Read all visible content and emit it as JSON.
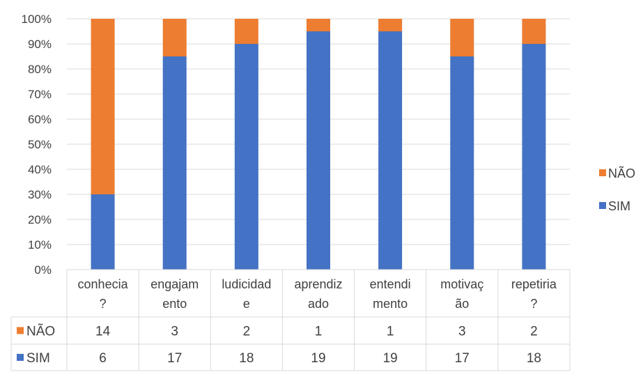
{
  "chart_data": {
    "type": "bar",
    "stacked": true,
    "normalized_percent": true,
    "categories": [
      [
        "conhecia",
        "?"
      ],
      [
        "engajam",
        "ento"
      ],
      [
        "ludicidad",
        "e"
      ],
      [
        "aprendiz",
        "ado"
      ],
      [
        "entendi",
        "mento"
      ],
      [
        "motivaç",
        "ão"
      ],
      [
        "repetiria",
        "?"
      ]
    ],
    "series": [
      {
        "name": "SIM",
        "color": "#4472C4",
        "values": [
          6,
          17,
          18,
          19,
          19,
          17,
          18
        ]
      },
      {
        "name": "NÃO",
        "color": "#ED7D31",
        "values": [
          14,
          3,
          2,
          1,
          1,
          3,
          2
        ]
      }
    ],
    "y_ticks": [
      "0%",
      "10%",
      "20%",
      "30%",
      "40%",
      "50%",
      "60%",
      "70%",
      "80%",
      "90%",
      "100%"
    ],
    "ylim": [
      0,
      100
    ],
    "grid": true,
    "legend": {
      "position": "right",
      "entries": [
        "NÃO",
        "SIM"
      ]
    },
    "data_table": {
      "rows": [
        "NÃO",
        "SIM"
      ]
    }
  }
}
